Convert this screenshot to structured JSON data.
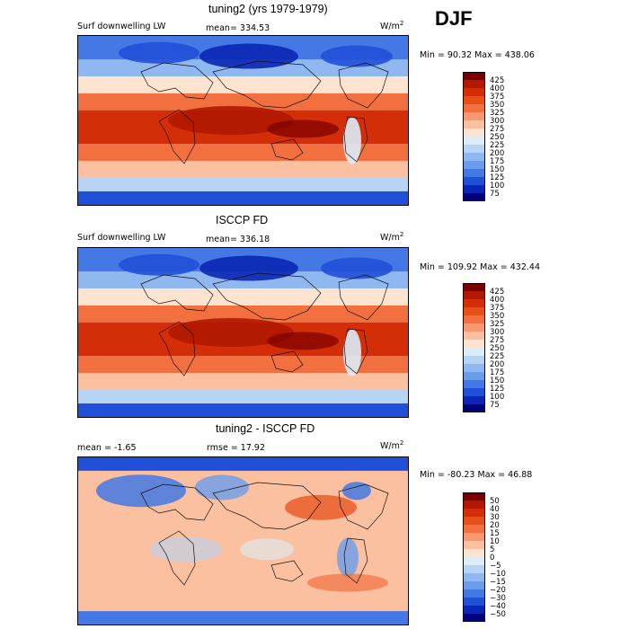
{
  "season": "DJF",
  "chart_data": [
    {
      "type": "heatmap",
      "title": "tuning2 (yrs 1979-1979)",
      "variable": "Surf downwelling LW",
      "stat_left": "mean= 334.53",
      "units": "W/m",
      "units_exp": "2",
      "minmax": "Min =  90.32 Max = 438.06",
      "min": 90.32,
      "max": 438.06,
      "mean": 334.53,
      "colorbar_levels": [
        425,
        400,
        375,
        350,
        325,
        300,
        275,
        250,
        225,
        200,
        175,
        150,
        125,
        100,
        75
      ],
      "colorbar_labels": [
        "425",
        "400",
        "375",
        "350",
        "325",
        "300",
        "275",
        "250",
        "225",
        "200",
        "175",
        "150",
        "125",
        "100",
        "75"
      ],
      "colors": [
        "#7a0000",
        "#b01800",
        "#d42e08",
        "#e8501a",
        "#f27040",
        "#f89870",
        "#fbc0a0",
        "#fde4d0",
        "#dcecf8",
        "#b8d4f4",
        "#90b8f0",
        "#6a9cec",
        "#4478e4",
        "#2050d8",
        "#0a26b4",
        "#00007a"
      ]
    },
    {
      "type": "heatmap",
      "title": "ISCCP FD",
      "variable": "Surf downwelling LW",
      "stat_left": "mean= 336.18",
      "units": "W/m",
      "units_exp": "2",
      "minmax": "Min = 109.92 Max = 432.44",
      "min": 109.92,
      "max": 432.44,
      "mean": 336.18,
      "colorbar_levels": [
        425,
        400,
        375,
        350,
        325,
        300,
        275,
        250,
        225,
        200,
        175,
        150,
        125,
        100,
        75
      ],
      "colorbar_labels": [
        "425",
        "400",
        "375",
        "350",
        "325",
        "300",
        "275",
        "250",
        "225",
        "200",
        "175",
        "150",
        "125",
        "100",
        "75"
      ],
      "colors": [
        "#7a0000",
        "#b01800",
        "#d42e08",
        "#e8501a",
        "#f27040",
        "#f89870",
        "#fbc0a0",
        "#fde4d0",
        "#dcecf8",
        "#b8d4f4",
        "#90b8f0",
        "#6a9cec",
        "#4478e4",
        "#2050d8",
        "#0a26b4",
        "#00007a"
      ]
    },
    {
      "type": "heatmap",
      "title": "tuning2 - ISCCP FD",
      "stat_left": "mean =  -1.65",
      "stat_mid": "rmse =  17.92",
      "units": "W/m",
      "units_exp": "2",
      "minmax": "Min = -80.23 Max =  46.88",
      "min": -80.23,
      "max": 46.88,
      "mean": -1.65,
      "rmse": 17.92,
      "colorbar_levels": [
        50,
        40,
        30,
        20,
        15,
        10,
        5,
        0,
        -5,
        -10,
        -15,
        -20,
        -30,
        -40,
        -50
      ],
      "colorbar_labels": [
        "50",
        "40",
        "30",
        "20",
        "15",
        "10",
        "5",
        "0",
        "−5",
        "−10",
        "−15",
        "−20",
        "−30",
        "−40",
        "−50"
      ],
      "colors": [
        "#7a0000",
        "#b01800",
        "#d42e08",
        "#e8501a",
        "#f27040",
        "#f89870",
        "#fbc0a0",
        "#fde4d0",
        "#dcecf8",
        "#b8d4f4",
        "#90b8f0",
        "#6a9cec",
        "#4478e4",
        "#2050d8",
        "#0a26b4",
        "#00007a"
      ]
    }
  ]
}
